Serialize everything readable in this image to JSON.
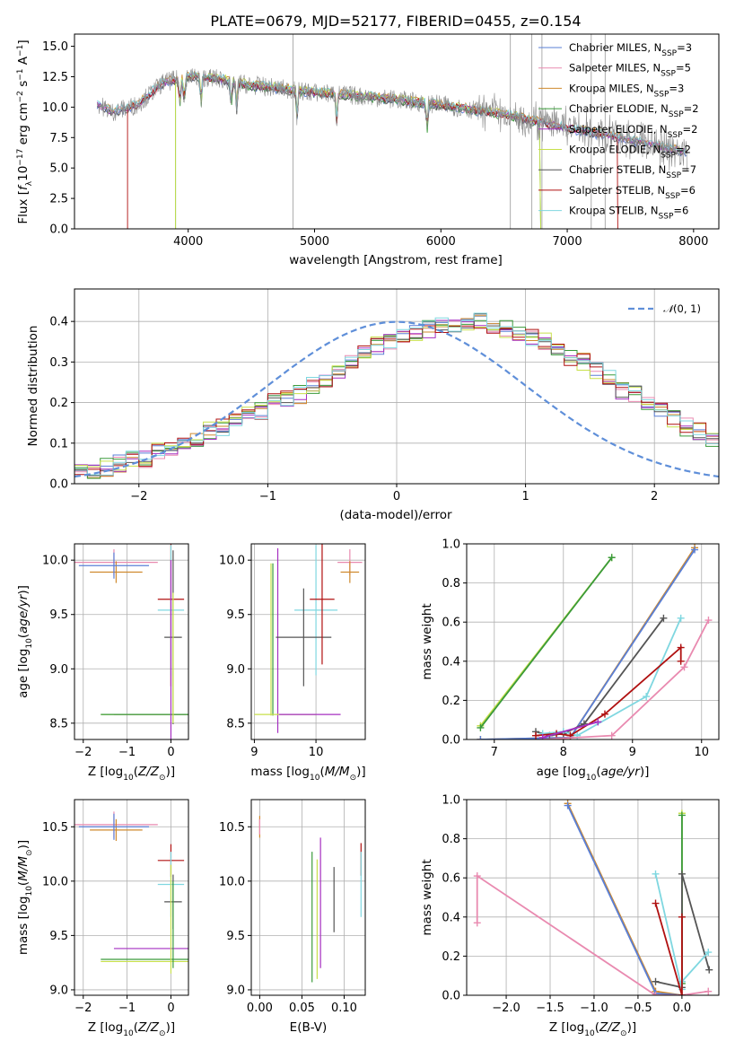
{
  "figure": {
    "title": "PLATE=0679, MJD=52177, FIBERID=0455, z=0.154"
  },
  "colors": {
    "Chabrier MILES": "#5a7fd6",
    "Salpeter MILES": "#e98ab0",
    "Kroupa MILES": "#cf8a2e",
    "Chabrier ELODIE": "#3a9a3a",
    "Salpeter ELODIE": "#a52fc0",
    "Kroupa ELODIE": "#c7e04a",
    "Chabrier STELIB": "#555555",
    "Salpeter STELIB": "#b01010",
    "Kroupa STELIB": "#7fd7e0",
    "normal": "#5f8fd9",
    "data": "#8c8c8c"
  },
  "chart_data": [
    {
      "id": "spectrum",
      "type": "line",
      "title": "PLATE=0679, MJD=52177, FIBERID=0455, z=0.154",
      "xlabel": "wavelength [Angstrom, rest frame]",
      "ylabel": "Flux [f_λ 10^-17 erg cm^-2 s^-1 A^-1]",
      "xlim": [
        3100,
        8200
      ],
      "ylim": [
        0,
        16
      ],
      "xticks": [
        4000,
        5000,
        6000,
        7000,
        8000
      ],
      "yticks": [
        0.0,
        2.5,
        5.0,
        7.5,
        10.0,
        12.5,
        15.0
      ],
      "grid": false,
      "legend_position": "right",
      "legend": [
        {
          "model": "Chabrier MILES",
          "label": "Chabrier MILES, N",
          "sub": "SSP",
          "n": "=3"
        },
        {
          "model": "Salpeter MILES",
          "label": "Salpeter MILES, N",
          "sub": "SSP",
          "n": "=5"
        },
        {
          "model": "Kroupa MILES",
          "label": "Kroupa MILES, N",
          "sub": "SSP",
          "n": "=3"
        },
        {
          "model": "Chabrier ELODIE",
          "label": "Chabrier ELODIE, N",
          "sub": "SSP",
          "n": "=2"
        },
        {
          "model": "Salpeter ELODIE",
          "label": "Salpeter ELODIE, N",
          "sub": "SSP",
          "n": "=2"
        },
        {
          "model": "Kroupa ELODIE",
          "label": "Kroupa ELODIE, N",
          "sub": "SSP",
          "n": "=2"
        },
        {
          "model": "Chabrier STELIB",
          "label": "Chabrier STELIB, N",
          "sub": "SSP",
          "n": "=7"
        },
        {
          "model": "Salpeter STELIB",
          "label": "Salpeter STELIB, N",
          "sub": "SSP",
          "n": "=6"
        },
        {
          "model": "Kroupa STELIB",
          "label": "Kroupa STELIB, N",
          "sub": "SSP",
          "n": "=6"
        }
      ],
      "continuum": {
        "x": [
          3280,
          3400,
          3600,
          3800,
          4000,
          4200,
          4500,
          5000,
          5500,
          6000,
          6500,
          7000,
          7500,
          7950
        ],
        "y": [
          10.3,
          9.6,
          10.2,
          12.0,
          12.5,
          12.4,
          11.8,
          11.2,
          10.8,
          10.2,
          9.4,
          8.3,
          7.3,
          6.3
        ]
      },
      "model_cutoffs": [
        {
          "model": "Salpeter STELIB",
          "blue_edge": 3520,
          "red_edge": 7400
        },
        {
          "model": "Kroupa ELODIE",
          "blue_edge": 3900,
          "red_edge": 6790
        },
        {
          "model": "Chabrier ELODIE",
          "blue_edge": 3900,
          "red_edge": 6790
        }
      ],
      "absorption_features": [
        3934,
        3969,
        4102,
        4340,
        4384,
        4861,
        5175,
        5890
      ],
      "emission_spikes": [
        4830,
        6800,
        6550,
        6720,
        7190,
        7300
      ]
    },
    {
      "id": "residuals",
      "type": "line",
      "xlabel": "(data-model)/error",
      "ylabel": "Normed distribution",
      "xlim": [
        -2.5,
        2.5
      ],
      "ylim": [
        0,
        0.48
      ],
      "xticks": [
        -2,
        -1,
        0,
        1,
        2
      ],
      "yticks": [
        0.0,
        0.1,
        0.2,
        0.3,
        0.4
      ],
      "grid": true,
      "legend_position": "top-right",
      "legend": [
        {
          "label": "𝒩(0,1)",
          "style": "dashed"
        }
      ],
      "bin_edges_start": -2.5,
      "bin_width": 0.1,
      "histogram_reference": [
        0.03,
        0.03,
        0.04,
        0.05,
        0.06,
        0.06,
        0.08,
        0.09,
        0.1,
        0.11,
        0.13,
        0.14,
        0.16,
        0.18,
        0.18,
        0.2,
        0.21,
        0.22,
        0.24,
        0.26,
        0.28,
        0.3,
        0.32,
        0.34,
        0.35,
        0.36,
        0.37,
        0.38,
        0.39,
        0.39,
        0.4,
        0.4,
        0.39,
        0.38,
        0.37,
        0.36,
        0.35,
        0.33,
        0.31,
        0.3,
        0.28,
        0.26,
        0.23,
        0.22,
        0.2,
        0.18,
        0.16,
        0.14,
        0.13,
        0.11,
        0.1,
        0.09,
        0.08,
        0.07,
        0.06,
        0.06,
        0.05,
        0.05,
        0.04,
        0.04
      ]
    },
    {
      "id": "metallicity-age",
      "type": "scatter",
      "xlabel": "Z [log10(Z/Z⊙)]",
      "ylabel": "age  [log10(age/yr)]",
      "xlim": [
        -2.2,
        0.4
      ],
      "ylim": [
        8.35,
        10.15
      ],
      "xticks": [
        -2,
        -1,
        0
      ],
      "yticks": [
        8.5,
        9.0,
        9.5,
        10.0
      ],
      "grid": true,
      "points": [
        {
          "model": "Salpeter MILES",
          "x": -1.3,
          "y": 9.98,
          "xerr": 1.0,
          "yerr": 0.12
        },
        {
          "model": "Kroupa MILES",
          "x": -1.25,
          "y": 9.89,
          "xerr": 0.6,
          "yerr": 0.1
        },
        {
          "model": "Chabrier MILES",
          "x": -1.3,
          "y": 9.95,
          "xerr": 0.8,
          "yerr": 0.12
        },
        {
          "model": "Salpeter ELODIE",
          "x": -0.2,
          "y": 8.58,
          "xerr": 1.1,
          "yerr": 0.0
        },
        {
          "model": "Kroupa ELODIE",
          "x": -0.6,
          "y": 8.58,
          "xerr": 1.0,
          "yerr": 0.0
        },
        {
          "model": "Chabrier ELODIE",
          "x": -0.6,
          "y": 8.58,
          "xerr": 1.0,
          "yerr": 0.0
        },
        {
          "model": "Salpeter STELIB",
          "x": 0.0,
          "y": 9.64,
          "xerr": 0.3,
          "yerr": 0.8
        },
        {
          "model": "Kroupa STELIB",
          "x": 0.0,
          "y": 9.54,
          "xerr": 0.3,
          "yerr": 0.6
        },
        {
          "model": "Chabrier STELIB",
          "x": 0.05,
          "y": 9.29,
          "xerr": 0.2,
          "yerr": 0.8
        },
        {
          "model": "Salpeter ELODIE",
          "x": 0.0,
          "y": 9.1,
          "xerr": 0.0,
          "yerr": 0.9
        },
        {
          "model": "Kroupa ELODIE",
          "x": 0.05,
          "y": 9.1,
          "xerr": 0.0,
          "yerr": 0.6
        }
      ]
    },
    {
      "id": "mass-age",
      "type": "scatter",
      "xlabel": "mass [log10(M/M⊙)]",
      "ylabel": "",
      "xlim": [
        8.95,
        10.8
      ],
      "ylim": [
        8.35,
        10.15
      ],
      "xticks": [
        9,
        10
      ],
      "yticks": [
        8.5,
        9.0,
        9.5,
        10.0
      ],
      "grid": true,
      "points": [
        {
          "model": "Salpeter MILES",
          "x": 10.55,
          "y": 9.98,
          "xerr": 0.2,
          "yerr": 0.12
        },
        {
          "model": "Kroupa MILES",
          "x": 10.55,
          "y": 9.89,
          "xerr": 0.15,
          "yerr": 0.1
        },
        {
          "model": "Kroupa ELODIE",
          "x": 9.27,
          "y": 9.27,
          "xerr": 0.0,
          "yerr": 0.7
        },
        {
          "model": "Chabrier ELODIE",
          "x": 9.3,
          "y": 9.27,
          "xerr": 0.0,
          "yerr": 0.7
        },
        {
          "model": "Salpeter ELODIE",
          "x": 9.38,
          "y": 9.26,
          "xerr": 0.0,
          "yerr": 0.85
        },
        {
          "model": "Kroupa ELODIE",
          "x": 9.5,
          "y": 8.58,
          "xerr": 0.5,
          "yerr": 0.0
        },
        {
          "model": "Salpeter ELODIE",
          "x": 9.9,
          "y": 8.58,
          "xerr": 0.5,
          "yerr": 0.0
        },
        {
          "model": "Kroupa STELIB",
          "x": 10.0,
          "y": 9.54,
          "xerr": 0.35,
          "yerr": 0.6
        },
        {
          "model": "Chabrier STELIB",
          "x": 9.8,
          "y": 9.29,
          "xerr": 0.45,
          "yerr": 0.45
        },
        {
          "model": "Salpeter STELIB",
          "x": 10.1,
          "y": 9.64,
          "xerr": 0.2,
          "yerr": 0.6
        }
      ]
    },
    {
      "id": "age-massweight",
      "type": "line",
      "xlabel": "age  [log10(age/yr)]",
      "ylabel": "mass weight",
      "xlim": [
        6.6,
        10.25
      ],
      "ylim": [
        0,
        1.0
      ],
      "xticks": [
        7,
        8,
        9,
        10
      ],
      "yticks": [
        0.0,
        0.2,
        0.4,
        0.6,
        0.8,
        1.0
      ],
      "grid": true,
      "series": [
        {
          "model": "Kroupa ELODIE",
          "x": [
            6.8,
            8.7
          ],
          "y": [
            0.07,
            0.93
          ]
        },
        {
          "model": "Chabrier ELODIE",
          "x": [
            6.8,
            8.7
          ],
          "y": [
            0.06,
            0.93
          ]
        },
        {
          "model": "Kroupa MILES",
          "x": [
            6.8,
            8.1,
            9.9
          ],
          "y": [
            0.0,
            0.01,
            0.98
          ]
        },
        {
          "model": "Chabrier MILES",
          "x": [
            6.8,
            8.1,
            9.9
          ],
          "y": [
            0.0,
            0.01,
            0.97
          ]
        },
        {
          "model": "Chabrier STELIB",
          "x": [
            7.6,
            7.8,
            8.0,
            8.3,
            9.45
          ],
          "y": [
            0.04,
            0.02,
            0.03,
            0.08,
            0.62
          ]
        },
        {
          "model": "Kroupa STELIB",
          "x": [
            7.7,
            8.0,
            8.2,
            9.2,
            9.7
          ],
          "y": [
            0.03,
            0.04,
            0.02,
            0.22,
            0.62
          ]
        },
        {
          "model": "Salpeter STELIB",
          "x": [
            7.6,
            7.9,
            8.1,
            8.6,
            9.7,
            9.7
          ],
          "y": [
            0.02,
            0.03,
            0.02,
            0.13,
            0.47,
            0.4
          ]
        },
        {
          "model": "Salpeter MILES",
          "x": [
            7.7,
            8.7,
            9.75,
            10.1
          ],
          "y": [
            0.0,
            0.02,
            0.37,
            0.61
          ]
        },
        {
          "model": "Salpeter ELODIE",
          "x": [
            7.7,
            8.5
          ],
          "y": [
            0.01,
            0.09
          ]
        }
      ]
    },
    {
      "id": "metallicity-mass",
      "type": "scatter",
      "xlabel": "Z [log10(Z/Z⊙)]",
      "ylabel": "mass [log10(M/M⊙)]",
      "xlim": [
        -2.2,
        0.4
      ],
      "ylim": [
        8.95,
        10.75
      ],
      "xticks": [
        -2,
        -1,
        0
      ],
      "yticks": [
        9.0,
        9.5,
        10.0,
        10.5
      ],
      "grid": true,
      "points": [
        {
          "model": "Salpeter MILES",
          "x": -1.3,
          "y": 10.52,
          "xerr": 1.0,
          "yerr": 0.12
        },
        {
          "model": "Kroupa MILES",
          "x": -1.25,
          "y": 10.47,
          "xerr": 0.6,
          "yerr": 0.1
        },
        {
          "model": "Chabrier MILES",
          "x": -1.3,
          "y": 10.5,
          "xerr": 0.8,
          "yerr": 0.12
        },
        {
          "model": "Salpeter ELODIE",
          "x": -0.2,
          "y": 9.38,
          "xerr": 1.1,
          "yerr": 0.0
        },
        {
          "model": "Chabrier ELODIE",
          "x": -0.6,
          "y": 9.28,
          "xerr": 1.0,
          "yerr": 0.0
        },
        {
          "model": "Kroupa ELODIE",
          "x": -0.6,
          "y": 9.26,
          "xerr": 1.0,
          "yerr": 0.0
        },
        {
          "model": "Salpeter STELIB",
          "x": 0.0,
          "y": 10.19,
          "xerr": 0.3,
          "yerr": 0.15
        },
        {
          "model": "Kroupa STELIB",
          "x": 0.0,
          "y": 9.97,
          "xerr": 0.3,
          "yerr": 0.3
        },
        {
          "model": "Chabrier STELIB",
          "x": 0.05,
          "y": 9.81,
          "xerr": 0.2,
          "yerr": 0.25
        },
        {
          "model": "Kroupa ELODIE",
          "x": 0.0,
          "y": 9.65,
          "xerr": 0.0,
          "yerr": 0.5
        },
        {
          "model": "Chabrier ELODIE",
          "x": 0.05,
          "y": 9.6,
          "xerr": 0.0,
          "yerr": 0.4
        }
      ]
    },
    {
      "id": "ebv-mass",
      "type": "scatter",
      "xlabel": "E(B-V)",
      "ylabel": "",
      "xlim": [
        -0.01,
        0.125
      ],
      "ylim": [
        8.95,
        10.75
      ],
      "xticks": [
        0.0,
        0.05,
        0.1
      ],
      "yticks": [
        9.0,
        9.5,
        10.0,
        10.5
      ],
      "grid": true,
      "points": [
        {
          "model": "Kroupa MILES",
          "x": 0.0,
          "y": 10.5,
          "xerr": 0.0,
          "yerr": 0.1
        },
        {
          "model": "Salpeter MILES",
          "x": 0.0,
          "y": 10.5,
          "xerr": 0.0,
          "yerr": 0.07
        },
        {
          "model": "Chabrier ELODIE",
          "x": 0.062,
          "y": 9.67,
          "xerr": 0.0,
          "yerr": 0.6
        },
        {
          "model": "Kroupa ELODIE",
          "x": 0.068,
          "y": 9.65,
          "xerr": 0.0,
          "yerr": 0.55
        },
        {
          "model": "Salpeter ELODIE",
          "x": 0.072,
          "y": 9.8,
          "xerr": 0.0,
          "yerr": 0.6
        },
        {
          "model": "Chabrier STELIB",
          "x": 0.088,
          "y": 9.83,
          "xerr": 0.0,
          "yerr": 0.3
        },
        {
          "model": "Salpeter STELIB",
          "x": 0.12,
          "y": 10.2,
          "xerr": 0.0,
          "yerr": 0.15
        },
        {
          "model": "Kroupa STELIB",
          "x": 0.12,
          "y": 9.97,
          "xerr": 0.0,
          "yerr": 0.3
        }
      ]
    },
    {
      "id": "metallicity-massweight",
      "type": "line",
      "xlabel": "Z [log10(Z/Z⊙)]",
      "ylabel": "mass weight",
      "xlim": [
        -2.45,
        0.42
      ],
      "ylim": [
        0,
        1.0
      ],
      "xticks": [
        -2.0,
        -1.5,
        -1.0,
        -0.5,
        0.0
      ],
      "yticks": [
        0.0,
        0.2,
        0.4,
        0.6,
        0.8,
        1.0
      ],
      "grid": true,
      "series": [
        {
          "model": "Kroupa MILES",
          "x": [
            -1.3,
            -0.3,
            0.0
          ],
          "y": [
            0.98,
            0.02,
            0.0
          ]
        },
        {
          "model": "Chabrier MILES",
          "x": [
            -1.3,
            -0.3,
            0.0
          ],
          "y": [
            0.97,
            0.01,
            0.0
          ]
        },
        {
          "model": "Kroupa ELODIE",
          "x": [
            0.0,
            0.0
          ],
          "y": [
            0.93,
            0.07
          ]
        },
        {
          "model": "Chabrier ELODIE",
          "x": [
            0.0,
            0.0
          ],
          "y": [
            0.92,
            0.06
          ]
        },
        {
          "model": "Salpeter MILES",
          "x": [
            -2.33,
            -2.33,
            -0.3,
            0.0,
            0.3
          ],
          "y": [
            0.37,
            0.61,
            0.0,
            0.0,
            0.02
          ]
        },
        {
          "model": "Chabrier STELIB",
          "x": [
            -0.3,
            0.0,
            0.0,
            0.31
          ],
          "y": [
            0.07,
            0.04,
            0.62,
            0.13
          ]
        },
        {
          "model": "Kroupa STELIB",
          "x": [
            -0.3,
            0.0,
            0.0,
            0.3
          ],
          "y": [
            0.62,
            0.03,
            0.07,
            0.22
          ]
        },
        {
          "model": "Salpeter STELIB",
          "x": [
            -0.3,
            0.0,
            0.0
          ],
          "y": [
            0.47,
            0.0,
            0.4
          ]
        }
      ]
    }
  ]
}
